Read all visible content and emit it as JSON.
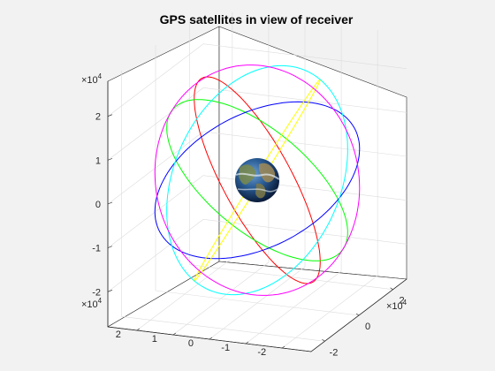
{
  "chart_data": {
    "type": "scatter",
    "title": "GPS satellites in view of receiver",
    "xlabel": "",
    "ylabel": "",
    "zlabel": "",
    "axes": {
      "x": {
        "multiplier": "×10",
        "exponent": "4",
        "ticks": [
          {
            "value": -2,
            "label": "-2"
          },
          {
            "value": 0,
            "label": "0"
          },
          {
            "value": 2,
            "label": "2"
          }
        ]
      },
      "y": {
        "multiplier": "×10",
        "exponent": "4",
        "ticks": [
          {
            "value": -2,
            "label": "-2"
          },
          {
            "value": -1,
            "label": "-1"
          },
          {
            "value": 0,
            "label": "0"
          },
          {
            "value": 1,
            "label": "1"
          },
          {
            "value": 2,
            "label": "2"
          }
        ]
      },
      "z": {
        "multiplier": "×10",
        "exponent": "4",
        "ticks": [
          {
            "value": -2,
            "label": "-2"
          },
          {
            "value": -1,
            "label": "-1"
          },
          {
            "value": 0,
            "label": "0"
          },
          {
            "value": 1,
            "label": "1"
          },
          {
            "value": 2,
            "label": "2"
          }
        ]
      }
    },
    "grid": true,
    "units_scale": 10000,
    "earth": {
      "label": "Earth",
      "radius": 6371
    },
    "orbits": [
      {
        "name": "",
        "color": "#ff0000",
        "radius": 26560,
        "inclination_deg": 55
      },
      {
        "name": "",
        "color": "#00ff00",
        "radius": 26560,
        "inclination_deg": 55
      },
      {
        "name": "",
        "color": "#0000ff",
        "radius": 26560,
        "inclination_deg": 55
      },
      {
        "name": "",
        "color": "#ffff00",
        "radius": 26560,
        "inclination_deg": 55
      },
      {
        "name": "",
        "color": "#00ffff",
        "radius": 26560,
        "inclination_deg": 55
      },
      {
        "name": "",
        "color": "#ff00ff",
        "radius": 26560,
        "inclination_deg": 55
      }
    ]
  }
}
